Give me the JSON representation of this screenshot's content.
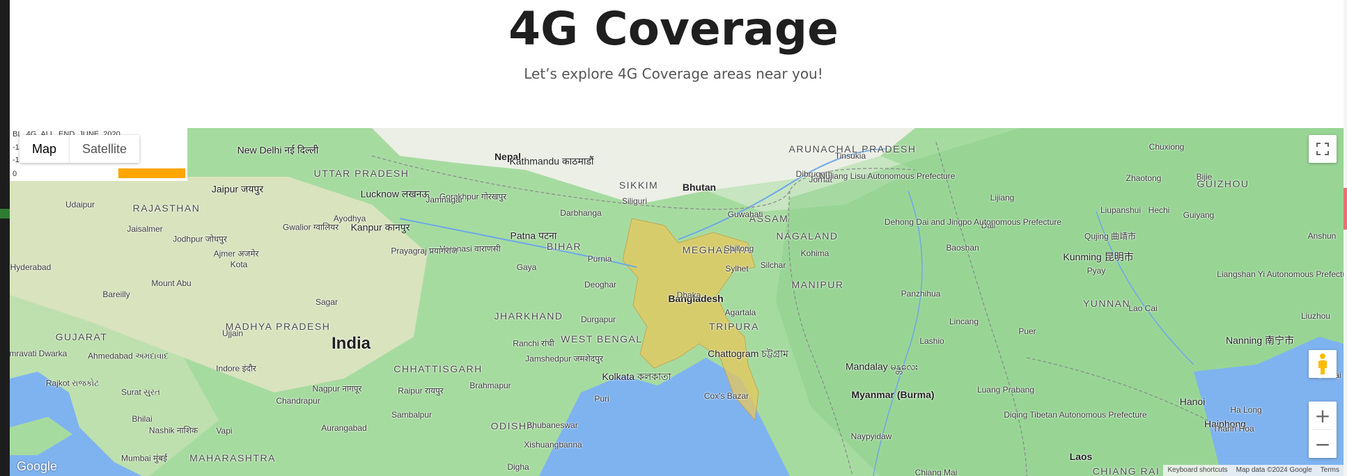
{
  "page": {
    "title": "4G Coverage",
    "subtitle": "Let’s explore 4G Coverage areas near you!"
  },
  "map": {
    "map_type": {
      "options": [
        "Map",
        "Satellite"
      ],
      "selected": "Map"
    },
    "legend": {
      "title": "BL_4G_ALL_END_JUNE_2020",
      "ticks": [
        "-1",
        "-1.5",
        "0"
      ],
      "bar_color": "#ffa500"
    },
    "zoom": {
      "in_label": "+",
      "out_label": "−"
    },
    "logo": "Google",
    "attribution": [
      "Keyboard shortcuts",
      "Map data ©2024 Google",
      "Terms"
    ],
    "icons": {
      "fullscreen": "fullscreen-icon",
      "street_view": "pegman-icon",
      "zoom_in": "plus-icon",
      "zoom_out": "minus-icon"
    },
    "colors": {
      "land": "#a6dba0",
      "plains": "#e9e6c8",
      "mountains": "#f4f1ec",
      "water": "#7fb3f0",
      "coverage": "#e8c75a"
    },
    "labels": {
      "countries": [
        "India",
        "Nepal",
        "Bhutan",
        "Bangladesh",
        "Myanmar (Burma)",
        "Laos"
      ],
      "regions": [
        "UTTAR PRADESH",
        "RAJASTHAN",
        "MADHYA PRADESH",
        "GUJARAT",
        "MAHARASHTRA",
        "BIHAR",
        "JHARKHAND",
        "WEST BENGAL",
        "CHHATTISGARH",
        "ODISHA",
        "ASSAM",
        "MEGHALAYA",
        "NAGALAND",
        "MANIPUR",
        "TRIPURA",
        "SIKKIM",
        "ARUNACHAL PRADESH",
        "YUNNAN",
        "GUIZHOU",
        "CHIANG RAI"
      ],
      "cities": [
        "New Delhi नई दिल्ली",
        "Jaipur जयपुर",
        "Lucknow लखनऊ",
        "Kanpur कानपुर",
        "Patna पटना",
        "Kathmandu काठमाडौं",
        "Kolkata কলকাতা",
        "Chattogram চট্টগ্রাম",
        "Mandalay မန္တလေး",
        "Kunming 昆明市",
        "Nanning 南宁市",
        "Hanoi",
        "Haiphong",
        "Nagpur नागपूर",
        "Indore इंदौर",
        "Ahmedabad અમદાવાદ",
        "Rajkot રાજકોટ",
        "Surat સુરત",
        "Nashik नाशिक",
        "Mumbai मुंबई",
        "Hyderabad",
        "Varanasi वाराणसी",
        "Prayagraj प्रयागराज",
        "Gorakhpur गोरखपुर",
        "Ranchi रांची",
        "Jamshedpur जमशेदपुर",
        "Raipur रायपुर",
        "Bhubaneswar",
        "Guwahati",
        "Shillong",
        "Sylhet",
        "Agartala",
        "Cox's Bazar",
        "Siliguri",
        "Dibrugarh",
        "Tinsukia",
        "Jorhat",
        "Kohima",
        "Silchar",
        "Dhaka",
        "Lashio",
        "Chiang Mai",
        "Naypyidaw",
        "Dali",
        "Lijiang",
        "Qujing 曲靖市",
        "Zhaotong",
        "Bijie",
        "Guiyang",
        "Anshun",
        "Liuzhou",
        "Beihai",
        "Ha Long",
        "Thanh Hoa",
        "Lao Cai",
        "Puer",
        "Baoshan",
        "Lincang",
        "Gaya",
        "Deoghar",
        "Purnia",
        "Darbhanga",
        "Durgapur",
        "Ujjain",
        "Sagar",
        "Gwalior ग्वालियर",
        "Kota",
        "Ajmer अजमेर",
        "Jodhpur जोधपुर",
        "Jaisalmer",
        "Udaipur",
        "Mount Abu",
        "Bareilly",
        "Ayodhya",
        "Jamnagar",
        "Dwarka",
        "Amravati",
        "Chandrapur",
        "Aurangabad",
        "Vapi",
        "Bhilai",
        "Sambalpur",
        "Brahmapur",
        "Digha",
        "Puri",
        "Xishuangbanna",
        "Luang Prabang",
        "Diqing Tibetan Autonomous Prefecture",
        "Nujiang Lisu Autonomous Prefecture",
        "Dehong Dai and Jingpo Autonomous Prefecture",
        "Panzhihua",
        "Liupanshui",
        "Hechi",
        "Liangshan Yi Autonomous Prefecture",
        "Chuxiong",
        "Pyay"
      ]
    }
  }
}
